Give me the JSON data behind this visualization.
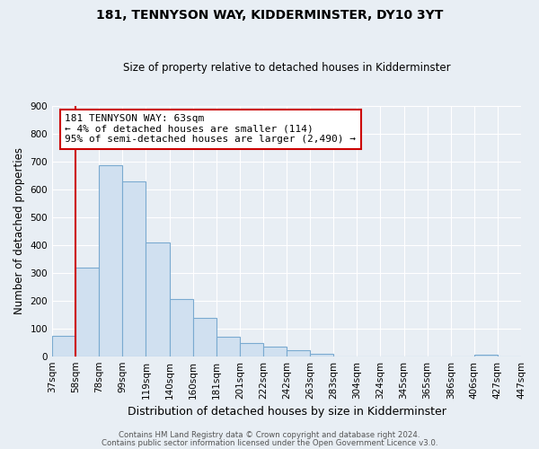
{
  "title": "181, TENNYSON WAY, KIDDERMINSTER, DY10 3YT",
  "subtitle": "Size of property relative to detached houses in Kidderminster",
  "xlabel": "Distribution of detached houses by size in Kidderminster",
  "ylabel": "Number of detached properties",
  "bar_values": [
    72,
    320,
    685,
    628,
    410,
    207,
    138,
    70,
    47,
    34,
    20,
    10,
    0,
    0,
    0,
    0,
    0,
    0,
    5,
    0
  ],
  "bin_labels": [
    "37sqm",
    "58sqm",
    "78sqm",
    "99sqm",
    "119sqm",
    "140sqm",
    "160sqm",
    "181sqm",
    "201sqm",
    "222sqm",
    "242sqm",
    "263sqm",
    "283sqm",
    "304sqm",
    "324sqm",
    "345sqm",
    "365sqm",
    "386sqm",
    "406sqm",
    "427sqm",
    "447sqm"
  ],
  "bar_color": "#d0e0f0",
  "bar_edge_color": "#7aaad0",
  "ylim": [
    0,
    900
  ],
  "yticks": [
    0,
    100,
    200,
    300,
    400,
    500,
    600,
    700,
    800,
    900
  ],
  "vline_x": 1.0,
  "vline_color": "#cc0000",
  "annotation_line1": "181 TENNYSON WAY: 63sqm",
  "annotation_line2": "← 4% of detached houses are smaller (114)",
  "annotation_line3": "95% of semi-detached houses are larger (2,490) →",
  "annotation_box_color": "#ffffff",
  "annotation_box_edge": "#cc0000",
  "footer1": "Contains HM Land Registry data © Crown copyright and database right 2024.",
  "footer2": "Contains public sector information licensed under the Open Government Licence v3.0.",
  "background_color": "#e8eef4"
}
